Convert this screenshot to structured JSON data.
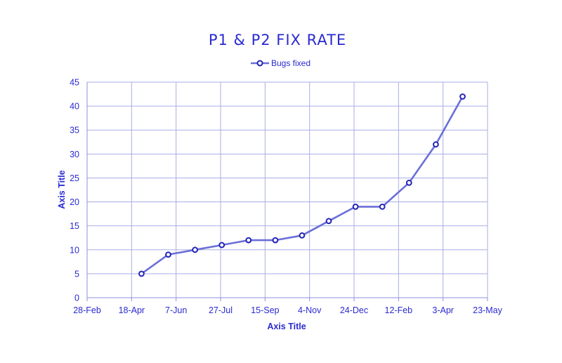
{
  "chart_data": {
    "type": "line",
    "title": "P1 & P2 FIX RATE",
    "xlabel": "Axis Title",
    "ylabel": "Axis Title",
    "legend_position": "top-center",
    "grid": true,
    "x_axis": {
      "type": "date",
      "range": [
        "2021-02-28",
        "2022-05-23"
      ],
      "tick_labels": [
        "28-Feb",
        "18-Apr",
        "7-Jun",
        "27-Jul",
        "15-Sep",
        "4-Nov",
        "24-Dec",
        "12-Feb",
        "3-Apr",
        "23-May"
      ]
    },
    "ylim": [
      0,
      45
    ],
    "y_ticks": [
      0,
      5,
      10,
      15,
      20,
      25,
      30,
      35,
      40,
      45
    ],
    "series": [
      {
        "name": "Bugs fixed",
        "color": "#6b6fd6",
        "marker_color": "#2424b8",
        "x": [
          "2021-04-30",
          "2021-05-30",
          "2021-06-29",
          "2021-07-29",
          "2021-08-28",
          "2021-09-27",
          "2021-10-27",
          "2021-11-26",
          "2021-12-26",
          "2022-01-25",
          "2022-02-24",
          "2022-03-26",
          "2022-04-25"
        ],
        "y": [
          5,
          9,
          10,
          11,
          12,
          12,
          13,
          16,
          19,
          19,
          24,
          32,
          42
        ]
      }
    ],
    "colors": {
      "text": "#2a2ad1",
      "grid": "#a9aee6",
      "axis": "#8a8fe0",
      "line": "#6b6fd6",
      "marker": "#2424b8"
    }
  }
}
